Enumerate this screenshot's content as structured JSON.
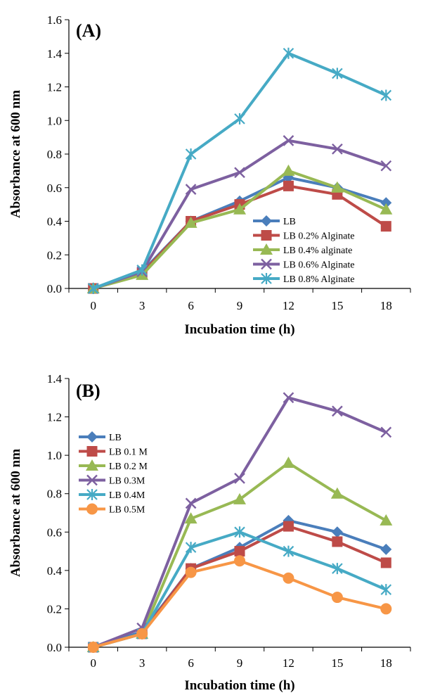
{
  "chart_data": [
    {
      "type": "line",
      "panel_label": "(A)",
      "xlabel": "Incubation time (h)",
      "ylabel": "Absorbance at 600 nm",
      "x": [
        0,
        3,
        6,
        9,
        12,
        15,
        18
      ],
      "x_ticks": [
        "0",
        "3",
        "6",
        "9",
        "12",
        "15",
        "18"
      ],
      "ylim": [
        0,
        1.6
      ],
      "y_ticks": [
        "0.0",
        "0.2",
        "0.4",
        "0.6",
        "0.8",
        "1.0",
        "1.2",
        "1.4",
        "1.6"
      ],
      "grid": false,
      "legend_position": "bottom-right",
      "series": [
        {
          "name": "LB",
          "color": "#4a7ebb",
          "marker": "diamond",
          "values": [
            0,
            0.1,
            0.4,
            0.52,
            0.66,
            0.6,
            0.51
          ]
        },
        {
          "name": "LB 0.2% Alginate",
          "color": "#be4b48",
          "marker": "square",
          "values": [
            0,
            0.09,
            0.4,
            0.5,
            0.61,
            0.56,
            0.37
          ]
        },
        {
          "name": "LB 0.4% alginate",
          "color": "#98b954",
          "marker": "triangle",
          "values": [
            0,
            0.08,
            0.39,
            0.47,
            0.7,
            0.6,
            0.47
          ]
        },
        {
          "name": "LB 0.6% Alginate",
          "color": "#7d60a0",
          "marker": "x",
          "values": [
            0,
            0.1,
            0.59,
            0.69,
            0.88,
            0.83,
            0.73
          ]
        },
        {
          "name": "LB 0.8% Alginate",
          "color": "#46aac5",
          "marker": "star",
          "values": [
            0,
            0.11,
            0.8,
            1.01,
            1.4,
            1.28,
            1.15
          ]
        }
      ]
    },
    {
      "type": "line",
      "panel_label": "(B)",
      "xlabel": "Incubation time (h)",
      "ylabel": "Absorbance at 600 nm",
      "x": [
        0,
        3,
        6,
        9,
        12,
        15,
        18
      ],
      "x_ticks": [
        "0",
        "3",
        "6",
        "9",
        "12",
        "15",
        "18"
      ],
      "ylim": [
        0,
        1.4
      ],
      "y_ticks": [
        "0.0",
        "0.2",
        "0.4",
        "0.6",
        "0.8",
        "1.0",
        "1.2",
        "1.4"
      ],
      "grid": false,
      "legend_position": "top-left",
      "series": [
        {
          "name": "LB",
          "color": "#4a7ebb",
          "marker": "diamond",
          "values": [
            0,
            0.08,
            0.41,
            0.52,
            0.66,
            0.6,
            0.51
          ]
        },
        {
          "name": "LB 0.1 M",
          "color": "#be4b48",
          "marker": "square",
          "values": [
            0,
            0.07,
            0.41,
            0.5,
            0.63,
            0.55,
            0.44
          ]
        },
        {
          "name": "LB 0.2 M",
          "color": "#98b954",
          "marker": "triangle",
          "values": [
            0,
            0.07,
            0.67,
            0.77,
            0.96,
            0.8,
            0.66
          ]
        },
        {
          "name": "LB 0.3M",
          "color": "#7d60a0",
          "marker": "x",
          "values": [
            0,
            0.1,
            0.75,
            0.88,
            1.3,
            1.23,
            1.12
          ]
        },
        {
          "name": "LB 0.4M",
          "color": "#46aac5",
          "marker": "star",
          "values": [
            0,
            0.07,
            0.52,
            0.6,
            0.5,
            0.41,
            0.3
          ]
        },
        {
          "name": "LB 0.5M",
          "color": "#f79646",
          "marker": "circle",
          "values": [
            0,
            0.07,
            0.39,
            0.45,
            0.36,
            0.26,
            0.2
          ]
        }
      ]
    }
  ]
}
